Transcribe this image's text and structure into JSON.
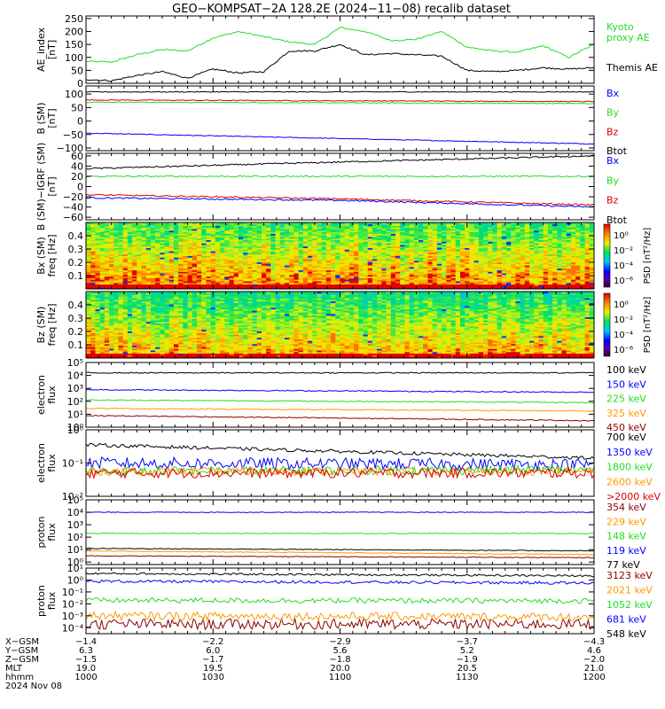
{
  "title": "GEO−KOMPSAT−2A 128.2E (2024−11−08) recalib dataset",
  "colors": {
    "black": "#000000",
    "blue": "#0000ff",
    "green": "#22dd22",
    "red": "#dd0000",
    "orange": "#ff9900",
    "darkred": "#8b0000"
  },
  "chart_data": [
    {
      "panel": "ae",
      "type": "line",
      "ylabel": [
        "AE_index",
        "[nT]"
      ],
      "ylim": [
        0,
        260
      ],
      "yscale": "linear",
      "yticks": [
        0,
        50,
        100,
        150,
        200,
        250
      ],
      "ytick_labels": [
        "0",
        "50",
        "100",
        "150",
        "200",
        "250"
      ],
      "x": [
        0,
        10,
        20,
        30,
        40,
        50,
        60,
        70,
        80,
        90,
        100,
        110,
        120,
        130,
        140,
        150,
        160,
        170,
        180,
        190,
        200
      ],
      "series": [
        {
          "name": "Kyoto proxy AE",
          "color": "green",
          "values": [
            85,
            82,
            110,
            130,
            125,
            175,
            200,
            180,
            160,
            150,
            215,
            200,
            165,
            170,
            200,
            140,
            125,
            120,
            145,
            100,
            150
          ]
        },
        {
          "name": "Themis AE",
          "color": "black",
          "values": [
            15,
            10,
            30,
            45,
            20,
            55,
            40,
            45,
            125,
            125,
            150,
            110,
            115,
            110,
            105,
            50,
            45,
            50,
            60,
            55,
            60
          ]
        }
      ],
      "legend": [
        {
          "text": "Kyoto",
          "color": "green"
        },
        {
          "text": "proxy AE",
          "color": "green"
        },
        {
          "text": "Themis AE",
          "color": "black"
        }
      ]
    },
    {
      "panel": "bsm",
      "type": "line",
      "ylabel": [
        "B (SM)",
        "[nT]"
      ],
      "ylim": [
        -110,
        130
      ],
      "yscale": "linear",
      "yticks": [
        100,
        50,
        0,
        -50,
        -100
      ],
      "ytick_labels": [
        "100",
        "50",
        "0",
        "−50",
        "−100"
      ],
      "x": [
        0,
        200
      ],
      "series": [
        {
          "name": "Bx",
          "color": "blue",
          "values": [
            -45,
            -85
          ]
        },
        {
          "name": "By",
          "color": "green",
          "values": [
            70,
            65
          ]
        },
        {
          "name": "Bz",
          "color": "red",
          "values": [
            78,
            72
          ]
        },
        {
          "name": "Btot",
          "color": "black",
          "values": [
            108,
            108
          ]
        }
      ],
      "legend": [
        {
          "text": "Bx",
          "color": "blue"
        },
        {
          "text": "By",
          "color": "green"
        },
        {
          "text": "Bz",
          "color": "red"
        },
        {
          "text": "Btot",
          "color": "black"
        }
      ]
    },
    {
      "panel": "bigrf",
      "type": "line",
      "ylabel": [
        "B (SM)−IGRF (SM)",
        "[nT]"
      ],
      "ylim": [
        -65,
        65
      ],
      "yscale": "linear",
      "yticks": [
        60,
        40,
        20,
        0,
        -20,
        -40,
        -60
      ],
      "ytick_labels": [
        "60",
        "40",
        "20",
        "0",
        "−20",
        "−40",
        "−60"
      ],
      "x": [
        0,
        100,
        200
      ],
      "series": [
        {
          "name": "Bx",
          "color": "blue",
          "values": [
            -22,
            -27,
            -40
          ]
        },
        {
          "name": "By",
          "color": "green",
          "values": [
            20,
            20,
            20
          ]
        },
        {
          "name": "Bz",
          "color": "red",
          "values": [
            -16,
            -24,
            -36
          ]
        },
        {
          "name": "Btot",
          "color": "black",
          "values": [
            35,
            48,
            60
          ]
        }
      ],
      "legend": [
        {
          "text": "Bx",
          "color": "blue"
        },
        {
          "text": "By",
          "color": "green"
        },
        {
          "text": "Bz",
          "color": "red"
        },
        {
          "text": "Btot",
          "color": "black"
        }
      ]
    },
    {
      "panel": "bxspec",
      "type": "heatmap",
      "ylabel": [
        "Bx (SM)",
        "freq [Hz]"
      ],
      "ylim": [
        0,
        0.5
      ],
      "yscale": "linear",
      "yticks": [
        0.1,
        0.2,
        0.3,
        0.4
      ],
      "ytick_labels": [
        "0.1",
        "0.2",
        "0.3",
        "0.4"
      ],
      "colorbar": {
        "label": "PSD [nT²/Hz]",
        "tick_labels": [
          "10⁰",
          "10⁻²",
          "10⁻⁴",
          "10⁻⁶"
        ]
      }
    },
    {
      "panel": "bzspec",
      "type": "heatmap",
      "ylabel": [
        "Bz (SM)",
        "freq [Hz]"
      ],
      "ylim": [
        0,
        0.5
      ],
      "yscale": "linear",
      "yticks": [
        0.1,
        0.2,
        0.3,
        0.4
      ],
      "ytick_labels": [
        "0.1",
        "0.2",
        "0.3",
        "0.4"
      ],
      "colorbar": {
        "label": "PSD [nT²/Hz]",
        "tick_labels": [
          "10⁰",
          "10⁻²",
          "10⁻⁴",
          "10⁻⁶"
        ]
      }
    },
    {
      "panel": "elec_low",
      "type": "line",
      "ylabel": [
        "electron",
        "flux"
      ],
      "ylim": [
        0,
        5
      ],
      "yscale": "log",
      "yticks": [
        0,
        1,
        2,
        3,
        4,
        5
      ],
      "ytick_labels": [
        "10⁰",
        "10¹",
        "10²",
        "10³",
        "10⁴",
        "10⁵"
      ],
      "x": [
        0,
        200
      ],
      "series": [
        {
          "name": "100 keV",
          "color": "black",
          "values": [
            4.2,
            4.2
          ]
        },
        {
          "name": "150 keV",
          "color": "blue",
          "values": [
            2.9,
            2.7
          ]
        },
        {
          "name": "225 keV",
          "color": "green",
          "values": [
            2.1,
            1.9
          ]
        },
        {
          "name": "325 keV",
          "color": "orange",
          "values": [
            1.45,
            1.25
          ]
        },
        {
          "name": "450 keV",
          "color": "darkred",
          "values": [
            0.9,
            0.5
          ]
        }
      ],
      "legend": [
        {
          "text": "100 keV",
          "color": "black"
        },
        {
          "text": "150 keV",
          "color": "blue"
        },
        {
          "text": "225 keV",
          "color": "green"
        },
        {
          "text": "325 keV",
          "color": "orange"
        },
        {
          "text": "450 keV",
          "color": "darkred"
        }
      ]
    },
    {
      "panel": "elec_high",
      "type": "line",
      "ylabel": [
        "electron",
        "flux"
      ],
      "ylim": [
        -2,
        0
      ],
      "yscale": "log",
      "yticks": [
        -2,
        -1,
        0
      ],
      "ytick_labels": [
        "10⁻²",
        "10⁻¹",
        "10⁰"
      ],
      "x": [
        0,
        200
      ],
      "series": [
        {
          "name": "700 keV",
          "color": "black",
          "values": [
            -0.45,
            -0.85
          ]
        },
        {
          "name": "1350 keV",
          "color": "blue",
          "values": [
            -1.0,
            -1.05
          ]
        },
        {
          "name": "1800 keV",
          "color": "green",
          "values": [
            -1.25,
            -1.2
          ]
        },
        {
          "name": "2600 keV",
          "color": "orange",
          "values": [
            -1.25,
            -1.25
          ]
        },
        {
          "name": ">2000 keV",
          "color": "red",
          "values": [
            -1.3,
            -1.3
          ]
        }
      ],
      "legend": [
        {
          "text": "700 keV",
          "color": "black"
        },
        {
          "text": "1350 keV",
          "color": "blue"
        },
        {
          "text": "1800 keV",
          "color": "green"
        },
        {
          "text": "2600 keV",
          "color": "orange"
        },
        {
          "text": ">2000 keV",
          "color": "red"
        }
      ]
    },
    {
      "panel": "prot_low",
      "type": "line",
      "ylabel": [
        "proton",
        "flux"
      ],
      "ylim": [
        -0.2,
        5
      ],
      "yscale": "log",
      "yticks": [
        0,
        1,
        2,
        3,
        4,
        5
      ],
      "ytick_labels": [
        "10⁰",
        "10¹",
        "10²",
        "10³",
        "10⁴",
        "10⁵"
      ],
      "x": [
        0,
        200
      ],
      "series": [
        {
          "name": "354 keV",
          "color": "darkred",
          "values": [
            0.5,
            0.35
          ]
        },
        {
          "name": "229 keV",
          "color": "orange",
          "values": [
            0.9,
            0.6
          ]
        },
        {
          "name": "148 keV",
          "color": "green",
          "values": [
            2.3,
            2.3
          ]
        },
        {
          "name": "119 keV",
          "color": "blue",
          "values": [
            4.0,
            4.0
          ]
        },
        {
          "name": "77 keV",
          "color": "black",
          "values": [
            1.1,
            0.9
          ]
        }
      ],
      "legend": [
        {
          "text": "354 keV",
          "color": "darkred"
        },
        {
          "text": "229 keV",
          "color": "orange"
        },
        {
          "text": "148 keV",
          "color": "green"
        },
        {
          "text": "119 keV",
          "color": "blue"
        },
        {
          "text": "77 keV",
          "color": "black"
        }
      ]
    },
    {
      "panel": "prot_high",
      "type": "line",
      "ylabel": [
        "proton",
        "flux"
      ],
      "ylim": [
        -4.5,
        1
      ],
      "yscale": "log",
      "yticks": [
        -4,
        -3,
        -2,
        -1,
        0,
        1
      ],
      "ytick_labels": [
        "10⁻⁴",
        "10⁻³",
        "10⁻²",
        "10⁻¹",
        "10⁰",
        "10¹"
      ],
      "x": [
        0,
        200
      ],
      "series": [
        {
          "name": "3123 keV",
          "color": "darkred",
          "values": [
            -3.7,
            -3.7
          ]
        },
        {
          "name": "2021 keV",
          "color": "orange",
          "values": [
            -3.0,
            -3.1
          ]
        },
        {
          "name": "1052 keV",
          "color": "green",
          "values": [
            -1.7,
            -1.75
          ]
        },
        {
          "name": "681 keV",
          "color": "blue",
          "values": [
            -0.1,
            -0.25
          ]
        },
        {
          "name": "548 keV",
          "color": "black",
          "values": [
            0.55,
            0.35
          ]
        }
      ],
      "legend": [
        {
          "text": "3123 keV",
          "color": "darkred"
        },
        {
          "text": "2021 keV",
          "color": "orange"
        },
        {
          "text": "1052 keV",
          "color": "green"
        },
        {
          "text": "681 keV",
          "color": "blue"
        },
        {
          "text": "548 keV",
          "color": "black"
        }
      ]
    }
  ],
  "xaxis": {
    "row_labels": [
      "X−GSM",
      "Y−GSM",
      "Z−GSM",
      "MLT",
      "hhmm"
    ],
    "date_label": "2024 Nov 08",
    "columns": [
      {
        "x": 0,
        "values": [
          "−1.4",
          "6.3",
          "−1.5",
          "19.0",
          "1000"
        ]
      },
      {
        "x": 50,
        "values": [
          "−2.2",
          "6.0",
          "−1.7",
          "19.5",
          "1030"
        ]
      },
      {
        "x": 100,
        "values": [
          "−2.9",
          "5.6",
          "−1.8",
          "20.0",
          "1100"
        ]
      },
      {
        "x": 150,
        "values": [
          "−3.7",
          "5.2",
          "−1.9",
          "20.5",
          "1130"
        ]
      },
      {
        "x": 200,
        "values": [
          "−4.3",
          "4.6",
          "−2.0",
          "21.0",
          "1200"
        ]
      }
    ]
  }
}
